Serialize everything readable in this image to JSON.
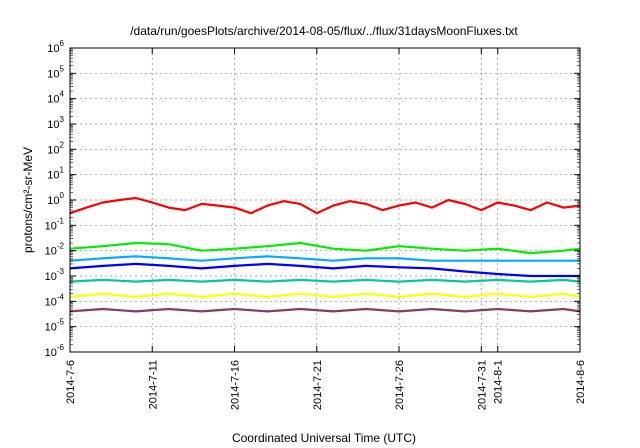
{
  "chart_data": {
    "type": "line",
    "title": "/data/run/goesPlots/archive/2014-08-05/flux/../flux/31daysMoonFluxes.txt",
    "xlabel": "Coordinated Universal Time (UTC)",
    "ylabel": "protons/cm²-sr-MeV",
    "yscale": "log",
    "ylim": [
      1e-06,
      1000000.0
    ],
    "xlim": [
      "2014-07-06",
      "2014-08-06"
    ],
    "grid": true,
    "legend": "none",
    "y_ticks": [
      {
        "value": 1e-06,
        "base": "10",
        "exp": "-6"
      },
      {
        "value": 1e-05,
        "base": "10",
        "exp": "-5"
      },
      {
        "value": 0.0001,
        "base": "10",
        "exp": "-4"
      },
      {
        "value": 0.001,
        "base": "10",
        "exp": "-3"
      },
      {
        "value": 0.01,
        "base": "10",
        "exp": "-2"
      },
      {
        "value": 0.1,
        "base": "10",
        "exp": "-1"
      },
      {
        "value": 1.0,
        "base": "10",
        "exp": "0"
      },
      {
        "value": 10.0,
        "base": "10",
        "exp": "1"
      },
      {
        "value": 100.0,
        "base": "10",
        "exp": "2"
      },
      {
        "value": 1000.0,
        "base": "10",
        "exp": "3"
      },
      {
        "value": 10000.0,
        "base": "10",
        "exp": "4"
      },
      {
        "value": 100000.0,
        "base": "10",
        "exp": "5"
      },
      {
        "value": 1000000.0,
        "base": "10",
        "exp": "6"
      }
    ],
    "x_ticks": [
      {
        "date": "2014-07-06",
        "label": "2014-7-6"
      },
      {
        "date": "2014-07-11",
        "label": "2014-7-11"
      },
      {
        "date": "2014-07-16",
        "label": "2014-7-16"
      },
      {
        "date": "2014-07-21",
        "label": "2014-7-21"
      },
      {
        "date": "2014-07-26",
        "label": "2014-7-26"
      },
      {
        "date": "2014-07-31",
        "label": "2014-7-31"
      },
      {
        "date": "2014-08-01",
        "label": "2014-8-1"
      },
      {
        "date": "2014-08-06",
        "label": "2014-8-6"
      }
    ],
    "series": [
      {
        "color": "#ff0000",
        "x": [
          "2014-07-06",
          "2014-07-07",
          "2014-07-08",
          "2014-07-09",
          "2014-07-10",
          "2014-07-11",
          "2014-07-12",
          "2014-07-13",
          "2014-07-14",
          "2014-07-15",
          "2014-07-16",
          "2014-07-17",
          "2014-07-18",
          "2014-07-19",
          "2014-07-20",
          "2014-07-21",
          "2014-07-22",
          "2014-07-23",
          "2014-07-24",
          "2014-07-25",
          "2014-07-26",
          "2014-07-27",
          "2014-07-28",
          "2014-07-29",
          "2014-07-30",
          "2014-07-31",
          "2014-08-01",
          "2014-08-02",
          "2014-08-03",
          "2014-08-04",
          "2014-08-05",
          "2014-08-06"
        ],
        "values": [
          0.3,
          0.5,
          0.8,
          1.0,
          1.2,
          0.8,
          0.5,
          0.4,
          0.7,
          0.6,
          0.5,
          0.3,
          0.6,
          0.9,
          0.7,
          0.3,
          0.6,
          0.9,
          0.7,
          0.4,
          0.6,
          0.8,
          0.5,
          1.0,
          0.7,
          0.4,
          0.8,
          0.6,
          0.4,
          0.8,
          0.5,
          0.6
        ]
      },
      {
        "color": "#00ee00",
        "x": [
          "2014-07-06",
          "2014-07-08",
          "2014-07-10",
          "2014-07-12",
          "2014-07-14",
          "2014-07-16",
          "2014-07-18",
          "2014-07-20",
          "2014-07-22",
          "2014-07-24",
          "2014-07-26",
          "2014-07-28",
          "2014-07-30",
          "2014-08-01",
          "2014-08-03",
          "2014-08-05",
          "2014-08-06"
        ],
        "values": [
          0.012,
          0.015,
          0.02,
          0.018,
          0.01,
          0.012,
          0.015,
          0.02,
          0.012,
          0.01,
          0.015,
          0.012,
          0.01,
          0.012,
          0.008,
          0.01,
          0.012
        ]
      },
      {
        "color": "#0000ff",
        "x": [
          "2014-07-06",
          "2014-07-08",
          "2014-07-10",
          "2014-07-12",
          "2014-07-14",
          "2014-07-16",
          "2014-07-18",
          "2014-07-20",
          "2014-07-22",
          "2014-07-24",
          "2014-07-26",
          "2014-07-28",
          "2014-07-30",
          "2014-08-01",
          "2014-08-03",
          "2014-08-05",
          "2014-08-06"
        ],
        "values": [
          0.002,
          0.0025,
          0.003,
          0.0025,
          0.002,
          0.0025,
          0.003,
          0.0025,
          0.002,
          0.0025,
          0.0022,
          0.002,
          0.0015,
          0.0012,
          0.001,
          0.001,
          0.001
        ]
      },
      {
        "color": "#00aaff",
        "x": [
          "2014-07-06",
          "2014-07-08",
          "2014-07-10",
          "2014-07-12",
          "2014-07-14",
          "2014-07-16",
          "2014-07-18",
          "2014-07-20",
          "2014-07-22",
          "2014-07-24",
          "2014-07-26",
          "2014-07-28",
          "2014-07-30",
          "2014-08-01",
          "2014-08-03",
          "2014-08-05",
          "2014-08-06"
        ],
        "values": [
          0.004,
          0.005,
          0.006,
          0.005,
          0.004,
          0.005,
          0.006,
          0.005,
          0.004,
          0.005,
          0.005,
          0.004,
          0.004,
          0.004,
          0.004,
          0.004,
          0.004
        ]
      },
      {
        "color": "#00c8a0",
        "x": [
          "2014-07-06",
          "2014-07-08",
          "2014-07-10",
          "2014-07-12",
          "2014-07-14",
          "2014-07-16",
          "2014-07-18",
          "2014-07-20",
          "2014-07-22",
          "2014-07-24",
          "2014-07-26",
          "2014-07-28",
          "2014-07-30",
          "2014-08-01",
          "2014-08-03",
          "2014-08-05",
          "2014-08-06"
        ],
        "values": [
          0.0006,
          0.0007,
          0.0006,
          0.0007,
          0.0006,
          0.0007,
          0.0006,
          0.0007,
          0.0006,
          0.0007,
          0.0006,
          0.0007,
          0.0006,
          0.0007,
          0.0006,
          0.0007,
          0.0006
        ]
      },
      {
        "color": "#ffff00",
        "x": [
          "2014-07-06",
          "2014-07-08",
          "2014-07-10",
          "2014-07-12",
          "2014-07-14",
          "2014-07-16",
          "2014-07-18",
          "2014-07-20",
          "2014-07-22",
          "2014-07-24",
          "2014-07-26",
          "2014-07-28",
          "2014-07-30",
          "2014-08-01",
          "2014-08-03",
          "2014-08-05",
          "2014-08-06"
        ],
        "values": [
          0.00015,
          0.0002,
          0.00015,
          0.0002,
          0.00015,
          0.0002,
          0.00015,
          0.0002,
          0.00015,
          0.0002,
          0.00015,
          0.0002,
          0.00015,
          0.0002,
          0.00015,
          0.0002,
          0.00015
        ]
      },
      {
        "color": "#8b3a62",
        "x": [
          "2014-07-06",
          "2014-07-08",
          "2014-07-10",
          "2014-07-12",
          "2014-07-14",
          "2014-07-16",
          "2014-07-18",
          "2014-07-20",
          "2014-07-22",
          "2014-07-24",
          "2014-07-26",
          "2014-07-28",
          "2014-07-30",
          "2014-08-01",
          "2014-08-03",
          "2014-08-05",
          "2014-08-06"
        ],
        "values": [
          4e-05,
          5e-05,
          4e-05,
          5e-05,
          4e-05,
          5e-05,
          4e-05,
          5e-05,
          4e-05,
          5e-05,
          4e-05,
          5e-05,
          4e-05,
          5e-05,
          4e-05,
          5e-05,
          4e-05
        ]
      }
    ]
  }
}
